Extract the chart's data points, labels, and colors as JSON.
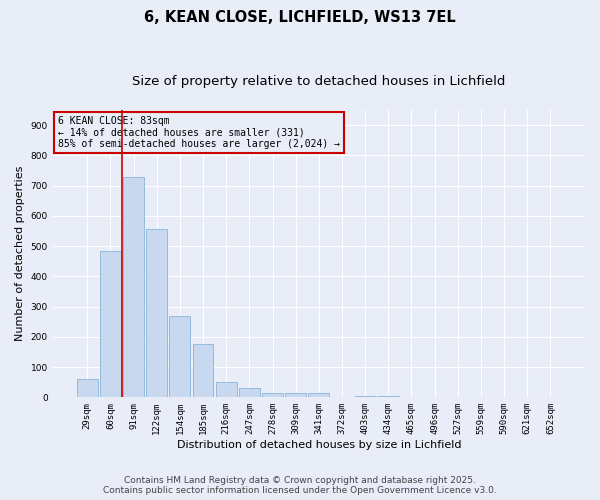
{
  "title": "6, KEAN CLOSE, LICHFIELD, WS13 7EL",
  "subtitle": "Size of property relative to detached houses in Lichfield",
  "xlabel": "Distribution of detached houses by size in Lichfield",
  "ylabel": "Number of detached properties",
  "bar_labels": [
    "29sqm",
    "60sqm",
    "91sqm",
    "122sqm",
    "154sqm",
    "185sqm",
    "216sqm",
    "247sqm",
    "278sqm",
    "309sqm",
    "341sqm",
    "372sqm",
    "403sqm",
    "434sqm",
    "465sqm",
    "496sqm",
    "527sqm",
    "559sqm",
    "590sqm",
    "621sqm",
    "652sqm"
  ],
  "bar_values": [
    60,
    485,
    730,
    555,
    270,
    175,
    50,
    30,
    15,
    13,
    13,
    0,
    5,
    5,
    0,
    0,
    0,
    0,
    0,
    0,
    0
  ],
  "bar_color": "#c8d8ef",
  "bar_edge_color": "#7baad4",
  "bar_edge_width": 0.5,
  "vline_x": 1.5,
  "vline_color": "#cc0000",
  "ylim": [
    0,
    950
  ],
  "yticks": [
    0,
    100,
    200,
    300,
    400,
    500,
    600,
    700,
    800,
    900
  ],
  "annotation_line1": "6 KEAN CLOSE: 83sqm",
  "annotation_line2": "← 14% of detached houses are smaller (331)",
  "annotation_line3": "85% of semi-detached houses are larger (2,024) →",
  "annotation_box_color": "#cc0000",
  "background_color": "#e8edf8",
  "grid_color": "#ffffff",
  "footer_line1": "Contains HM Land Registry data © Crown copyright and database right 2025.",
  "footer_line2": "Contains public sector information licensed under the Open Government Licence v3.0.",
  "title_fontsize": 10.5,
  "subtitle_fontsize": 9.5,
  "ylabel_fontsize": 8,
  "xlabel_fontsize": 8,
  "tick_fontsize": 6.5,
  "annot_fontsize": 7,
  "footer_fontsize": 6.5
}
